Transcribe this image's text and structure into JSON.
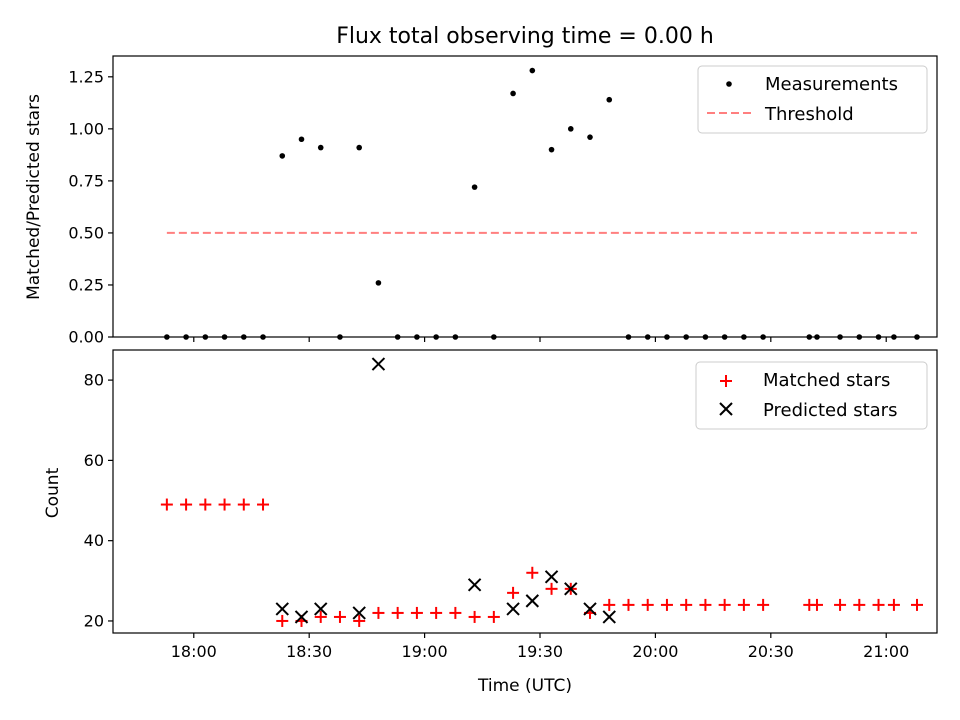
{
  "chart_data": [
    {
      "type": "scatter",
      "title": "Flux total observing time = 0.00 h",
      "ylabel": "Matched/Predicted stars",
      "xlabel": "",
      "ylim": [
        0,
        1.35
      ],
      "yticks": [
        "0.00",
        "0.25",
        "0.50",
        "0.75",
        "1.00",
        "1.25"
      ],
      "ytick_values": [
        0,
        0.25,
        0.5,
        0.75,
        1.0,
        1.25
      ],
      "x_range_hours": [
        17.65,
        21.22
      ],
      "legend_position": "top-right",
      "series": [
        {
          "name": "Measurements",
          "marker": "dot",
          "color": "#000000",
          "points": [
            {
              "t": "17:53",
              "y": 0.0
            },
            {
              "t": "17:58",
              "y": 0.0
            },
            {
              "t": "18:03",
              "y": 0.0
            },
            {
              "t": "18:08",
              "y": 0.0
            },
            {
              "t": "18:13",
              "y": 0.0
            },
            {
              "t": "18:18",
              "y": 0.0
            },
            {
              "t": "18:23",
              "y": 0.87
            },
            {
              "t": "18:28",
              "y": 0.95
            },
            {
              "t": "18:33",
              "y": 0.91
            },
            {
              "t": "18:38",
              "y": 0.0
            },
            {
              "t": "18:43",
              "y": 0.91
            },
            {
              "t": "18:48",
              "y": 0.26
            },
            {
              "t": "18:53",
              "y": 0.0
            },
            {
              "t": "18:58",
              "y": 0.0
            },
            {
              "t": "19:03",
              "y": 0.0
            },
            {
              "t": "19:08",
              "y": 0.0
            },
            {
              "t": "19:13",
              "y": 0.72
            },
            {
              "t": "19:18",
              "y": 0.0
            },
            {
              "t": "19:23",
              "y": 1.17
            },
            {
              "t": "19:28",
              "y": 1.28
            },
            {
              "t": "19:33",
              "y": 0.9
            },
            {
              "t": "19:38",
              "y": 1.0
            },
            {
              "t": "19:43",
              "y": 0.96
            },
            {
              "t": "19:48",
              "y": 1.14
            },
            {
              "t": "19:53",
              "y": 0.0
            },
            {
              "t": "19:58",
              "y": 0.0
            },
            {
              "t": "20:03",
              "y": 0.0
            },
            {
              "t": "20:08",
              "y": 0.0
            },
            {
              "t": "20:13",
              "y": 0.0
            },
            {
              "t": "20:18",
              "y": 0.0
            },
            {
              "t": "20:23",
              "y": 0.0
            },
            {
              "t": "20:28",
              "y": 0.0
            },
            {
              "t": "20:40",
              "y": 0.0
            },
            {
              "t": "20:42",
              "y": 0.0
            },
            {
              "t": "20:48",
              "y": 0.0
            },
            {
              "t": "20:53",
              "y": 0.0
            },
            {
              "t": "20:58",
              "y": 0.0
            },
            {
              "t": "21:02",
              "y": 0.0
            },
            {
              "t": "21:08",
              "y": 0.0
            }
          ]
        },
        {
          "name": "Threshold",
          "style": "dashed",
          "color": "#ff7f7f",
          "points": [
            {
              "t": "17:53",
              "y": 0.5
            },
            {
              "t": "21:08",
              "y": 0.5
            }
          ]
        }
      ]
    },
    {
      "type": "scatter",
      "title": "",
      "ylabel": "Count",
      "xlabel": "Time (UTC)",
      "ylim": [
        17,
        87.5
      ],
      "yticks": [
        "20",
        "40",
        "60",
        "80"
      ],
      "ytick_values": [
        20,
        40,
        60,
        80
      ],
      "xticks": [
        "18:00",
        "18:30",
        "19:00",
        "19:30",
        "20:00",
        "20:30",
        "21:00"
      ],
      "x_range_hours": [
        17.65,
        21.22
      ],
      "legend_position": "top-right",
      "series": [
        {
          "name": "Matched stars",
          "marker": "plus",
          "color": "#ff0000",
          "points": [
            {
              "t": "17:53",
              "y": 49
            },
            {
              "t": "17:58",
              "y": 49
            },
            {
              "t": "18:03",
              "y": 49
            },
            {
              "t": "18:08",
              "y": 49
            },
            {
              "t": "18:13",
              "y": 49
            },
            {
              "t": "18:18",
              "y": 49
            },
            {
              "t": "18:23",
              "y": 20
            },
            {
              "t": "18:28",
              "y": 20
            },
            {
              "t": "18:33",
              "y": 21
            },
            {
              "t": "18:38",
              "y": 21
            },
            {
              "t": "18:43",
              "y": 20
            },
            {
              "t": "18:48",
              "y": 22
            },
            {
              "t": "18:53",
              "y": 22
            },
            {
              "t": "18:58",
              "y": 22
            },
            {
              "t": "19:03",
              "y": 22
            },
            {
              "t": "19:08",
              "y": 22
            },
            {
              "t": "19:13",
              "y": 21
            },
            {
              "t": "19:18",
              "y": 21
            },
            {
              "t": "19:23",
              "y": 27
            },
            {
              "t": "19:28",
              "y": 32
            },
            {
              "t": "19:33",
              "y": 28
            },
            {
              "t": "19:38",
              "y": 28
            },
            {
              "t": "19:43",
              "y": 22
            },
            {
              "t": "19:48",
              "y": 24
            },
            {
              "t": "19:53",
              "y": 24
            },
            {
              "t": "19:58",
              "y": 24
            },
            {
              "t": "20:03",
              "y": 24
            },
            {
              "t": "20:08",
              "y": 24
            },
            {
              "t": "20:13",
              "y": 24
            },
            {
              "t": "20:18",
              "y": 24
            },
            {
              "t": "20:23",
              "y": 24
            },
            {
              "t": "20:28",
              "y": 24
            },
            {
              "t": "20:40",
              "y": 24
            },
            {
              "t": "20:42",
              "y": 24
            },
            {
              "t": "20:48",
              "y": 24
            },
            {
              "t": "20:53",
              "y": 24
            },
            {
              "t": "20:58",
              "y": 24
            },
            {
              "t": "21:02",
              "y": 24
            },
            {
              "t": "21:08",
              "y": 24
            }
          ]
        },
        {
          "name": "Predicted stars",
          "marker": "x",
          "color": "#000000",
          "points": [
            {
              "t": "18:23",
              "y": 23
            },
            {
              "t": "18:28",
              "y": 21
            },
            {
              "t": "18:33",
              "y": 23
            },
            {
              "t": "18:43",
              "y": 22
            },
            {
              "t": "18:48",
              "y": 84
            },
            {
              "t": "19:13",
              "y": 29
            },
            {
              "t": "19:23",
              "y": 23
            },
            {
              "t": "19:28",
              "y": 25
            },
            {
              "t": "19:33",
              "y": 31
            },
            {
              "t": "19:38",
              "y": 28
            },
            {
              "t": "19:43",
              "y": 23
            },
            {
              "t": "19:48",
              "y": 21
            }
          ]
        }
      ]
    }
  ]
}
